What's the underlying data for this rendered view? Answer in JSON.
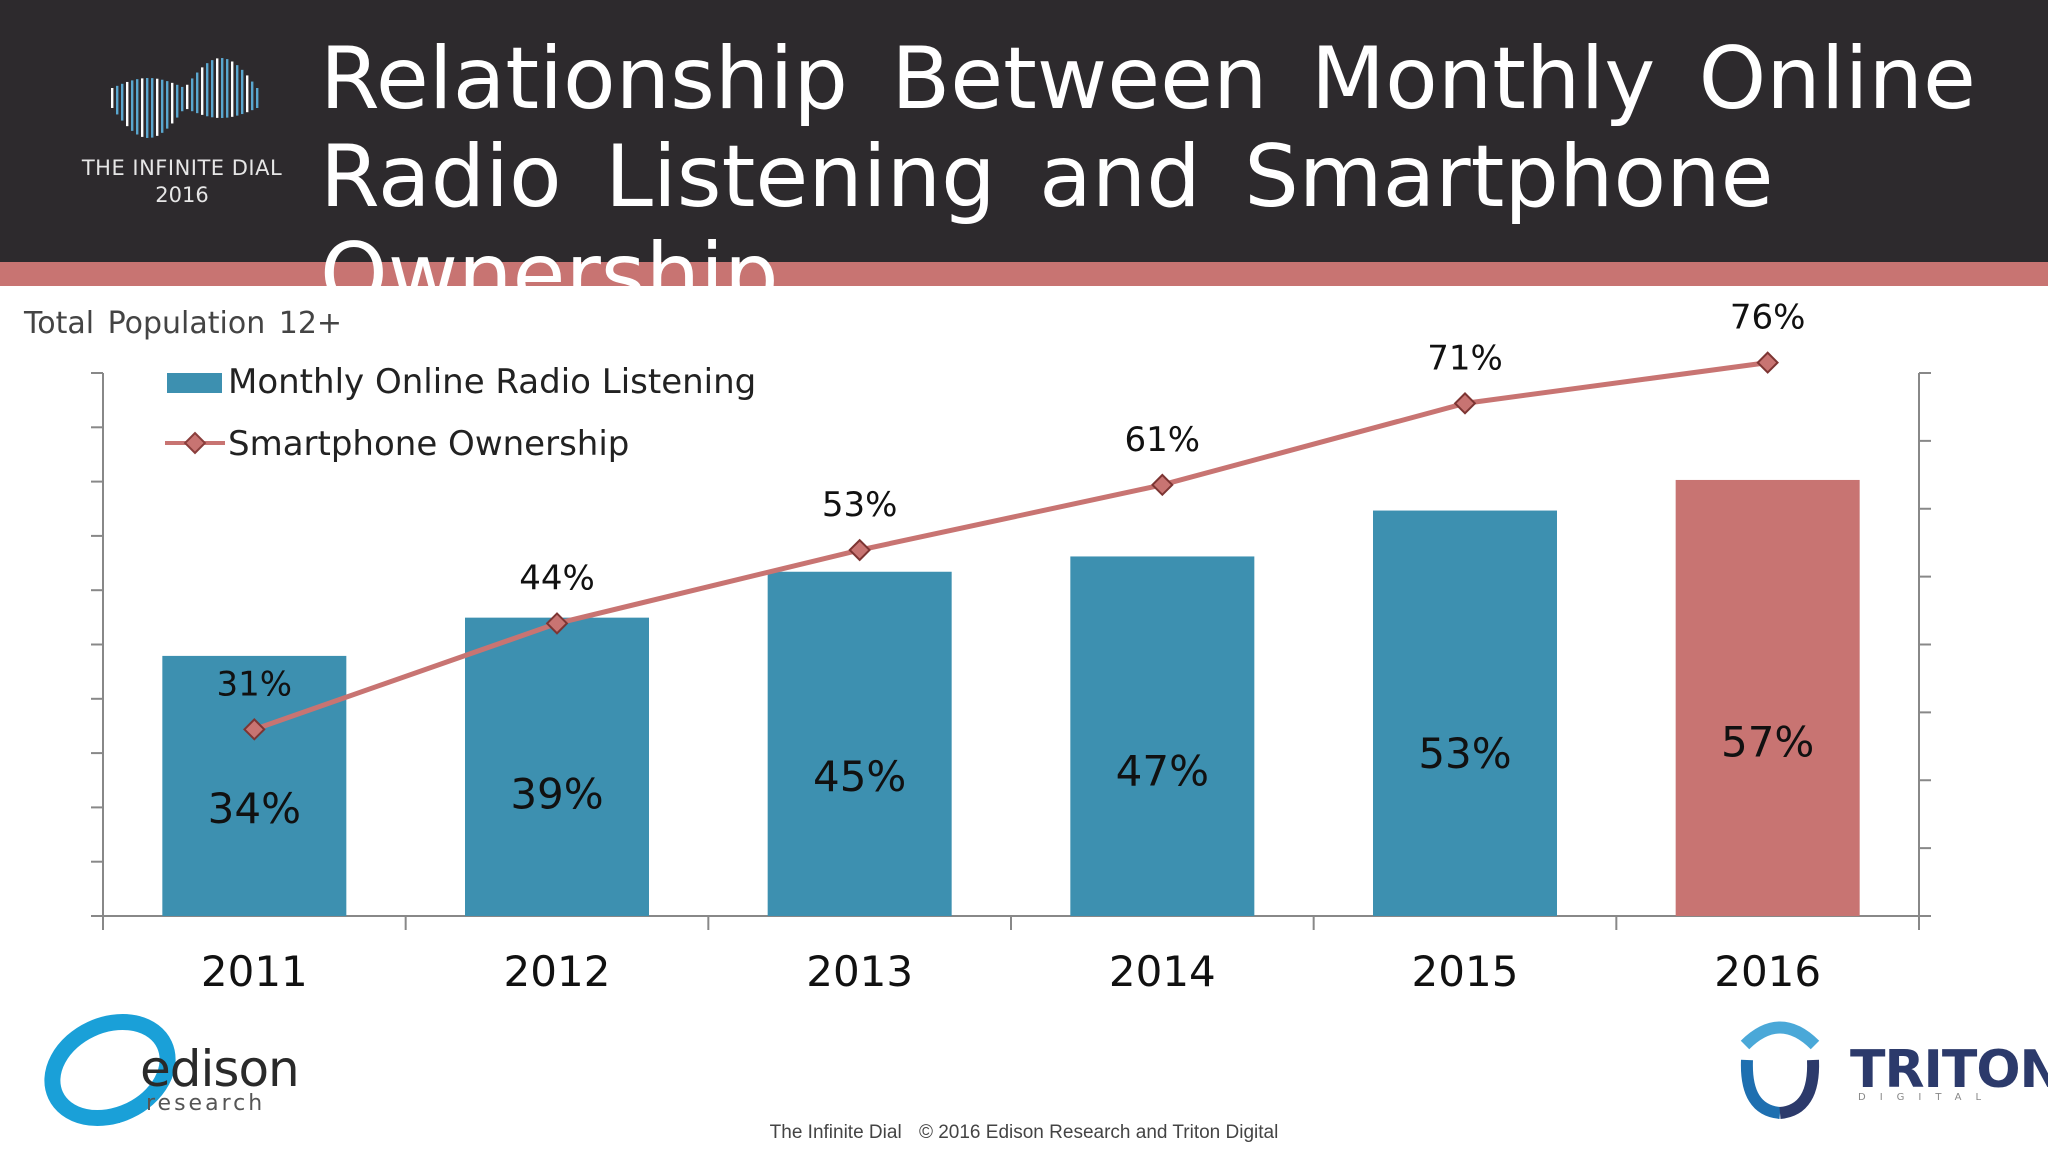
{
  "header": {
    "title": "Relationship Between Monthly Online Radio Listening and Smartphone Ownership",
    "brand_line1": "THE INFINITE DIAL",
    "brand_line2": "2016"
  },
  "subtitle": "Total Population 12+",
  "chart_data": {
    "type": "bar",
    "categories": [
      "2011",
      "2012",
      "2013",
      "2014",
      "2015",
      "2016"
    ],
    "series": [
      {
        "name": "Monthly Online Radio Listening",
        "kind": "bar",
        "values": [
          34,
          39,
          45,
          47,
          53,
          57
        ],
        "labels": [
          "34%",
          "39%",
          "45%",
          "47%",
          "53%",
          "57%"
        ],
        "color": "#3d90b0",
        "highlight_color": "#c87472",
        "highlight_index": 5
      },
      {
        "name": "Smartphone Ownership",
        "kind": "line",
        "values": [
          31,
          44,
          53,
          61,
          71,
          76
        ],
        "labels": [
          "31%",
          "44%",
          "53%",
          "61%",
          "71%",
          "76%"
        ],
        "color": "#c87472"
      }
    ],
    "bar_ylim": [
      0,
      80
    ],
    "line_ylim": [
      0,
      80
    ],
    "grid": false,
    "legend": "top-left"
  },
  "logos": {
    "left_word": "edison",
    "left_sub": "research",
    "right_word": "TRITON",
    "right_sub": "DIGITAL"
  },
  "footer": {
    "left": "The Infinite Dial",
    "right": "© 2016 Edison Research and Triton Digital"
  },
  "colors": {
    "header_bg": "#2d2a2d",
    "accent": "#c87472",
    "bar": "#3d90b0",
    "line": "#c87472"
  }
}
